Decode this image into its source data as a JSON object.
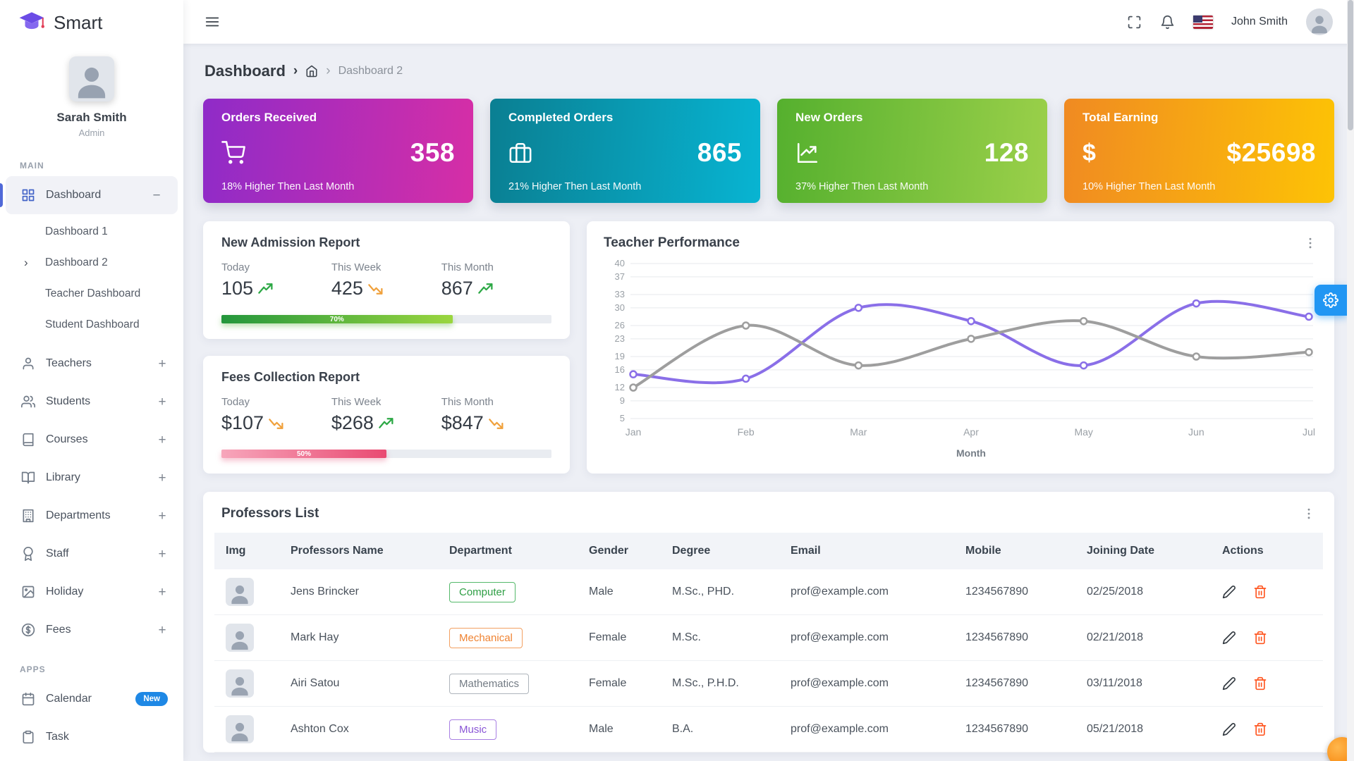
{
  "app": {
    "brand": "Smart"
  },
  "topbar": {
    "user_name": "John Smith"
  },
  "sidebar": {
    "profile": {
      "name": "Sarah Smith",
      "role": "Admin"
    },
    "section_main": "MAIN",
    "section_apps": "APPS",
    "nav": [
      {
        "label": "Dashboard",
        "icon": "dashboard-icon",
        "expand_icon": "minus-icon",
        "active": true
      },
      {
        "label": "Teachers",
        "icon": "teacher-icon",
        "expand_icon": "plus-icon"
      },
      {
        "label": "Students",
        "icon": "students-icon",
        "expand_icon": "plus-icon"
      },
      {
        "label": "Courses",
        "icon": "courses-icon",
        "expand_icon": "plus-icon"
      },
      {
        "label": "Library",
        "icon": "library-icon",
        "expand_icon": "plus-icon"
      },
      {
        "label": "Departments",
        "icon": "departments-icon",
        "expand_icon": "plus-icon"
      },
      {
        "label": "Staff",
        "icon": "staff-icon",
        "expand_icon": "plus-icon"
      },
      {
        "label": "Holiday",
        "icon": "holiday-icon",
        "expand_icon": "plus-icon"
      },
      {
        "label": "Fees",
        "icon": "fees-icon",
        "expand_icon": "plus-icon"
      }
    ],
    "dashboard_children": [
      {
        "label": "Dashboard 1"
      },
      {
        "label": "Dashboard 2",
        "active": true
      },
      {
        "label": "Teacher Dashboard"
      },
      {
        "label": "Student Dashboard"
      }
    ],
    "apps": [
      {
        "label": "Calendar",
        "icon": "calendar-icon",
        "badge": "New"
      },
      {
        "label": "Task",
        "icon": "task-icon"
      }
    ]
  },
  "breadcrumb": {
    "root": "Dashboard",
    "current": "Dashboard 2"
  },
  "stat_cards": [
    {
      "title": "Orders Received",
      "value": "358",
      "subtitle": "18% Higher Then Last Month",
      "icon": "shopping-cart-icon",
      "gradient": [
        "#8f2bc8",
        "#d62ea6"
      ]
    },
    {
      "title": "Completed Orders",
      "value": "865",
      "subtitle": "21% Higher Then Last Month",
      "icon": "briefcase-icon",
      "gradient": [
        "#0a7f92",
        "#08b4d2"
      ]
    },
    {
      "title": "New Orders",
      "value": "128",
      "subtitle": "37% Higher Then Last Month",
      "icon": "chart-line-icon",
      "gradient": [
        "#55b02e",
        "#9bd04a"
      ]
    },
    {
      "title": "Total Earning",
      "value": "$25698",
      "subtitle": "10% Higher Then Last Month",
      "icon": "dollar-icon",
      "gradient": [
        "#f08a22",
        "#fdc305"
      ]
    }
  ],
  "admission_report": {
    "title": "New Admission Report",
    "stats": [
      {
        "label": "Today",
        "value": "105",
        "trend": "up"
      },
      {
        "label": "This Week",
        "value": "425",
        "trend": "down"
      },
      {
        "label": "This Month",
        "value": "867",
        "trend": "up"
      }
    ],
    "progress": 70,
    "progress_label": "70%"
  },
  "fees_report": {
    "title": "Fees Collection Report",
    "stats": [
      {
        "label": "Today",
        "value": "$107",
        "trend": "down"
      },
      {
        "label": "This Week",
        "value": "$268",
        "trend": "up"
      },
      {
        "label": "This Month",
        "value": "$847",
        "trend": "down"
      }
    ],
    "progress": 50,
    "progress_label": "50%"
  },
  "performance": {
    "title": "Teacher Performance"
  },
  "chart_data": {
    "type": "line",
    "title": "Teacher Performance",
    "x": [
      "Jan",
      "Feb",
      "Mar",
      "Apr",
      "May",
      "Jun",
      "Jul"
    ],
    "xlabel": "Month",
    "y_ticks": [
      40,
      37,
      33,
      30,
      26,
      23,
      19,
      16,
      12,
      9,
      5
    ],
    "ylim": [
      5,
      40
    ],
    "grid": true,
    "legend": "none",
    "series": [
      {
        "name": "series-purple",
        "color": "#8a6fe8",
        "values": [
          15,
          14,
          30,
          27,
          17,
          31,
          28
        ]
      },
      {
        "name": "series-gray",
        "color": "#9e9e9e",
        "values": [
          12,
          26,
          17,
          23,
          27,
          19,
          20
        ]
      }
    ]
  },
  "professors": {
    "title": "Professors List",
    "columns": [
      "Img",
      "Professors Name",
      "Department",
      "Gender",
      "Degree",
      "Email",
      "Mobile",
      "Joining Date",
      "Actions"
    ],
    "rows": [
      {
        "name": "Jens Brincker",
        "department": "Computer",
        "dept_color": "green",
        "gender": "Male",
        "degree": "M.Sc., PHD.",
        "email": "prof@example.com",
        "mobile": "1234567890",
        "joining_date": "02/25/2018"
      },
      {
        "name": "Mark Hay",
        "department": "Mechanical",
        "dept_color": "orange",
        "gender": "Female",
        "degree": "M.Sc.",
        "email": "prof@example.com",
        "mobile": "1234567890",
        "joining_date": "02/21/2018"
      },
      {
        "name": "Airi Satou",
        "department": "Mathematics",
        "dept_color": "gray",
        "gender": "Female",
        "degree": "M.Sc., P.H.D.",
        "email": "prof@example.com",
        "mobile": "1234567890",
        "joining_date": "03/11/2018"
      },
      {
        "name": "Ashton Cox",
        "department": "Music",
        "dept_color": "purple",
        "gender": "Male",
        "degree": "B.A.",
        "email": "prof@example.com",
        "mobile": "1234567890",
        "joining_date": "05/21/2018"
      }
    ]
  },
  "colors": {
    "accent_blue": "#2196f3",
    "sidebar_active_indicator": "#5069d8",
    "badge_new_bg": "#1e88e5",
    "series_purple": "#8a6fe8",
    "series_gray": "#9e9e9e",
    "trend_up": "#2ca845",
    "trend_down": "#f0a13c",
    "trash_icon": "#ff5722",
    "progress_green": [
      "#23963c",
      "#9ad63e"
    ],
    "progress_pink": [
      "#f7a6bb",
      "#e94a72"
    ]
  }
}
